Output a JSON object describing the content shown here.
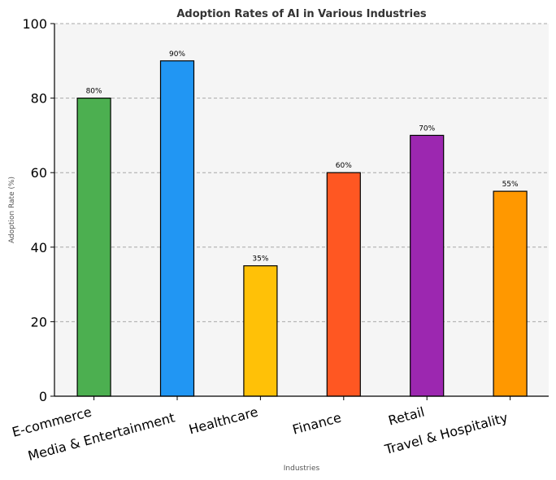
{
  "chart_data": {
    "type": "bar",
    "title": "Adoption Rates of AI in Various Industries",
    "xlabel": "Industries",
    "ylabel": "Adoption Rate (%)",
    "ylim": [
      0,
      100
    ],
    "yticks": [
      0,
      20,
      40,
      60,
      80,
      100
    ],
    "ytick_labels": [
      "0",
      "20",
      "40",
      "60",
      "80",
      "100"
    ],
    "grid": "horizontal dashed",
    "categories": [
      "E-commerce",
      "Media & Entertainment",
      "Healthcare",
      "Finance",
      "Retail",
      "Travel & Hospitality"
    ],
    "values": [
      80,
      90,
      35,
      60,
      70,
      55
    ],
    "data_labels": [
      "80%",
      "90%",
      "35%",
      "60%",
      "70%",
      "55%"
    ],
    "colors": [
      "#4caf50",
      "#2196f3",
      "#ffc107",
      "#ff5722",
      "#9c27b0",
      "#ff9800"
    ],
    "plot_background": "#f5f5f5"
  }
}
